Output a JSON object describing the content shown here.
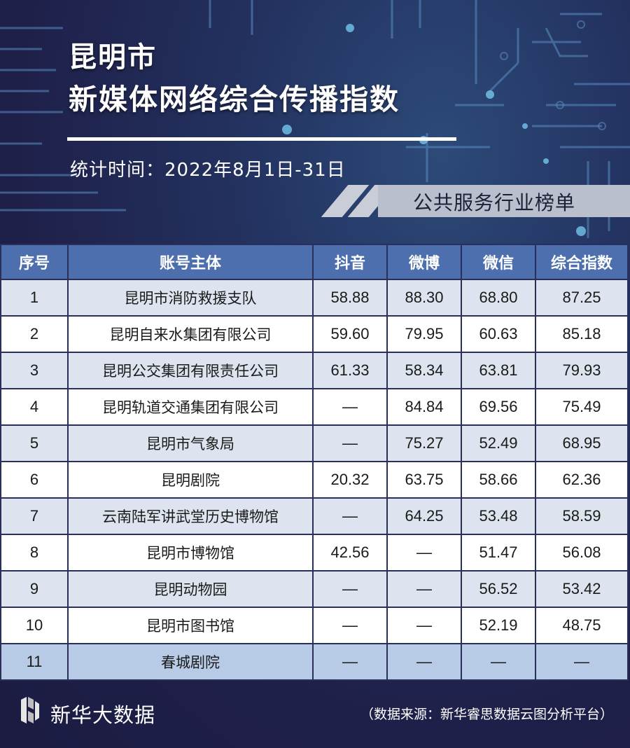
{
  "header": {
    "title_line1": "昆明市",
    "title_line2": "新媒体网络综合传播指数",
    "period": "统计时间：2022年8月1日-31日",
    "category": "公共服务行业榜单"
  },
  "table": {
    "columns": [
      "序号",
      "账号主体",
      "抖音",
      "微博",
      "微信",
      "综合指数"
    ],
    "rows": [
      {
        "rank": "1",
        "name": "昆明市消防救援支队",
        "douyin": "58.88",
        "weibo": "88.30",
        "weixin": "68.80",
        "index": "87.25"
      },
      {
        "rank": "2",
        "name": "昆明自来水集团有限公司",
        "douyin": "59.60",
        "weibo": "79.95",
        "weixin": "60.63",
        "index": "85.18"
      },
      {
        "rank": "3",
        "name": "昆明公交集团有限责任公司",
        "douyin": "61.33",
        "weibo": "58.34",
        "weixin": "63.81",
        "index": "79.93"
      },
      {
        "rank": "4",
        "name": "昆明轨道交通集团有限公司",
        "douyin": "—",
        "weibo": "84.84",
        "weixin": "69.56",
        "index": "75.49"
      },
      {
        "rank": "5",
        "name": "昆明市气象局",
        "douyin": "—",
        "weibo": "75.27",
        "weixin": "52.49",
        "index": "68.95"
      },
      {
        "rank": "6",
        "name": "昆明剧院",
        "douyin": "20.32",
        "weibo": "63.75",
        "weixin": "58.66",
        "index": "62.36"
      },
      {
        "rank": "7",
        "name": "云南陆军讲武堂历史博物馆",
        "douyin": "—",
        "weibo": "64.25",
        "weixin": "53.48",
        "index": "58.59"
      },
      {
        "rank": "8",
        "name": "昆明市博物馆",
        "douyin": "42.56",
        "weibo": "—",
        "weixin": "51.47",
        "index": "56.08"
      },
      {
        "rank": "9",
        "name": "昆明动物园",
        "douyin": "—",
        "weibo": "—",
        "weixin": "56.52",
        "index": "53.42"
      },
      {
        "rank": "10",
        "name": "昆明市图书馆",
        "douyin": "—",
        "weibo": "—",
        "weixin": "52.19",
        "index": "48.75"
      },
      {
        "rank": "11",
        "name": "春城剧院",
        "douyin": "—",
        "weibo": "—",
        "weixin": "—",
        "index": "—"
      }
    ]
  },
  "footer": {
    "brand": "新华大数据",
    "source": "（数据来源：新华睿思数据云图分析平台）"
  }
}
